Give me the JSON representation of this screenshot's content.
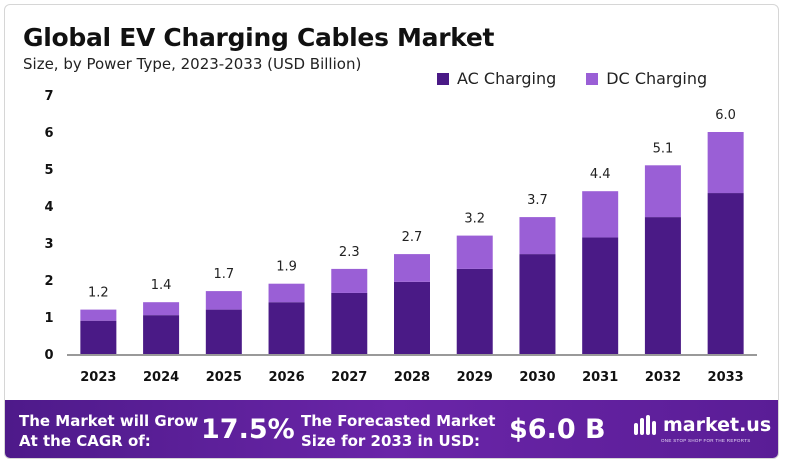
{
  "header": {
    "title": "Global EV Charging Cables Market",
    "subtitle": "Size, by Power Type, 2023-2033 (USD Billion)"
  },
  "colors": {
    "ac": "#4a1a86",
    "dc": "#9a5fd6",
    "axis": "#333333"
  },
  "chart_data": {
    "type": "bar",
    "stacked": true,
    "title": "Global EV Charging Cables Market",
    "subtitle": "Size, by Power Type, 2023-2033 (USD Billion)",
    "categories": [
      "2023",
      "2024",
      "2025",
      "2026",
      "2027",
      "2028",
      "2029",
      "2030",
      "2031",
      "2032",
      "2033"
    ],
    "series": [
      {
        "name": "AC Charging",
        "values": [
          0.9,
          1.05,
          1.2,
          1.4,
          1.65,
          1.95,
          2.3,
          2.7,
          3.15,
          3.7,
          4.35
        ]
      },
      {
        "name": "DC Charging",
        "values": [
          0.3,
          0.35,
          0.5,
          0.5,
          0.65,
          0.75,
          0.9,
          1.0,
          1.25,
          1.4,
          1.65
        ]
      }
    ],
    "totals": [
      "1.2",
      "1.4",
      "1.7",
      "1.9",
      "2.3",
      "2.7",
      "3.2",
      "3.7",
      "4.4",
      "5.1",
      "6.0"
    ],
    "y_ticks": [
      "0",
      "1",
      "2",
      "3",
      "4",
      "5",
      "6",
      "7"
    ],
    "ylim": [
      0,
      7
    ],
    "grid": false,
    "legend": "top-right"
  },
  "footer": {
    "cagr_label_1": "The Market will Grow",
    "cagr_label_2": "At the CAGR of:",
    "cagr_value": "17.5%",
    "forecast_label_1": "The Forecasted Market",
    "forecast_label_2": "Size for 2033 in USD:",
    "forecast_value": "$6.0 B",
    "logo_text": "market.us",
    "logo_tagline": "ONE STOP SHOP FOR THE REPORTS"
  }
}
